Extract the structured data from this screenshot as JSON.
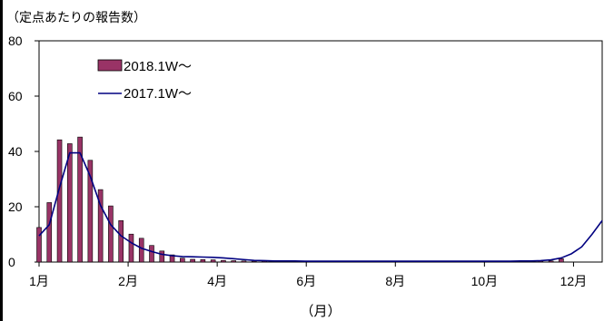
{
  "chart_data": {
    "type": "bar",
    "ylabel": "（定点あたりの報告数）",
    "xlabel": "（月）",
    "ylim": [
      0,
      80
    ],
    "y_ticks": [
      "0",
      "20",
      "40",
      "60",
      "80"
    ],
    "x_tick_labels": [
      "1月",
      "2月",
      "4月",
      "6月",
      "8月",
      "10月",
      "12月"
    ],
    "x_tick_weeks": [
      1,
      9.7,
      18.4,
      27.1,
      35.8,
      44.5,
      53.2
    ],
    "legend": {
      "position": "top-left"
    },
    "series": [
      {
        "name": "2018.1W～",
        "kind": "bar",
        "color": "#993366",
        "values": [
          12.5,
          21.5,
          44.2,
          42.8,
          45.2,
          36.8,
          26.2,
          20.3,
          15.0,
          10.1,
          8.6,
          6.0,
          4.0,
          2.6,
          1.4,
          1.0,
          0.9,
          0.8,
          0.6,
          0.5,
          0.4,
          0.3,
          0.3,
          0.2,
          0.2,
          0.2,
          0.2,
          0.2,
          0.2,
          0.2,
          0.2,
          0.2,
          0.2,
          0.2,
          0.2,
          0.2,
          0.2,
          0.2,
          0.2,
          0.2,
          0.2,
          0.2,
          0.2,
          0.2,
          0.2,
          0.2,
          0.2,
          0.2,
          0.2,
          0.3,
          0.4,
          1.2
        ]
      },
      {
        "name": "2017.1W～",
        "kind": "line",
        "color": "#000080",
        "values": [
          9.5,
          13.5,
          27.0,
          39.5,
          39.5,
          31.0,
          20.5,
          13.5,
          9.5,
          7.0,
          5.0,
          3.8,
          2.8,
          2.3,
          2.0,
          1.9,
          1.8,
          1.7,
          1.5,
          1.2,
          0.9,
          0.6,
          0.5,
          0.4,
          0.4,
          0.4,
          0.3,
          0.3,
          0.3,
          0.3,
          0.3,
          0.3,
          0.3,
          0.3,
          0.3,
          0.3,
          0.3,
          0.3,
          0.3,
          0.3,
          0.3,
          0.3,
          0.3,
          0.3,
          0.3,
          0.3,
          0.3,
          0.4,
          0.4,
          0.5,
          0.8,
          1.5,
          3.0,
          5.5,
          10.0,
          15.0
        ]
      }
    ]
  }
}
